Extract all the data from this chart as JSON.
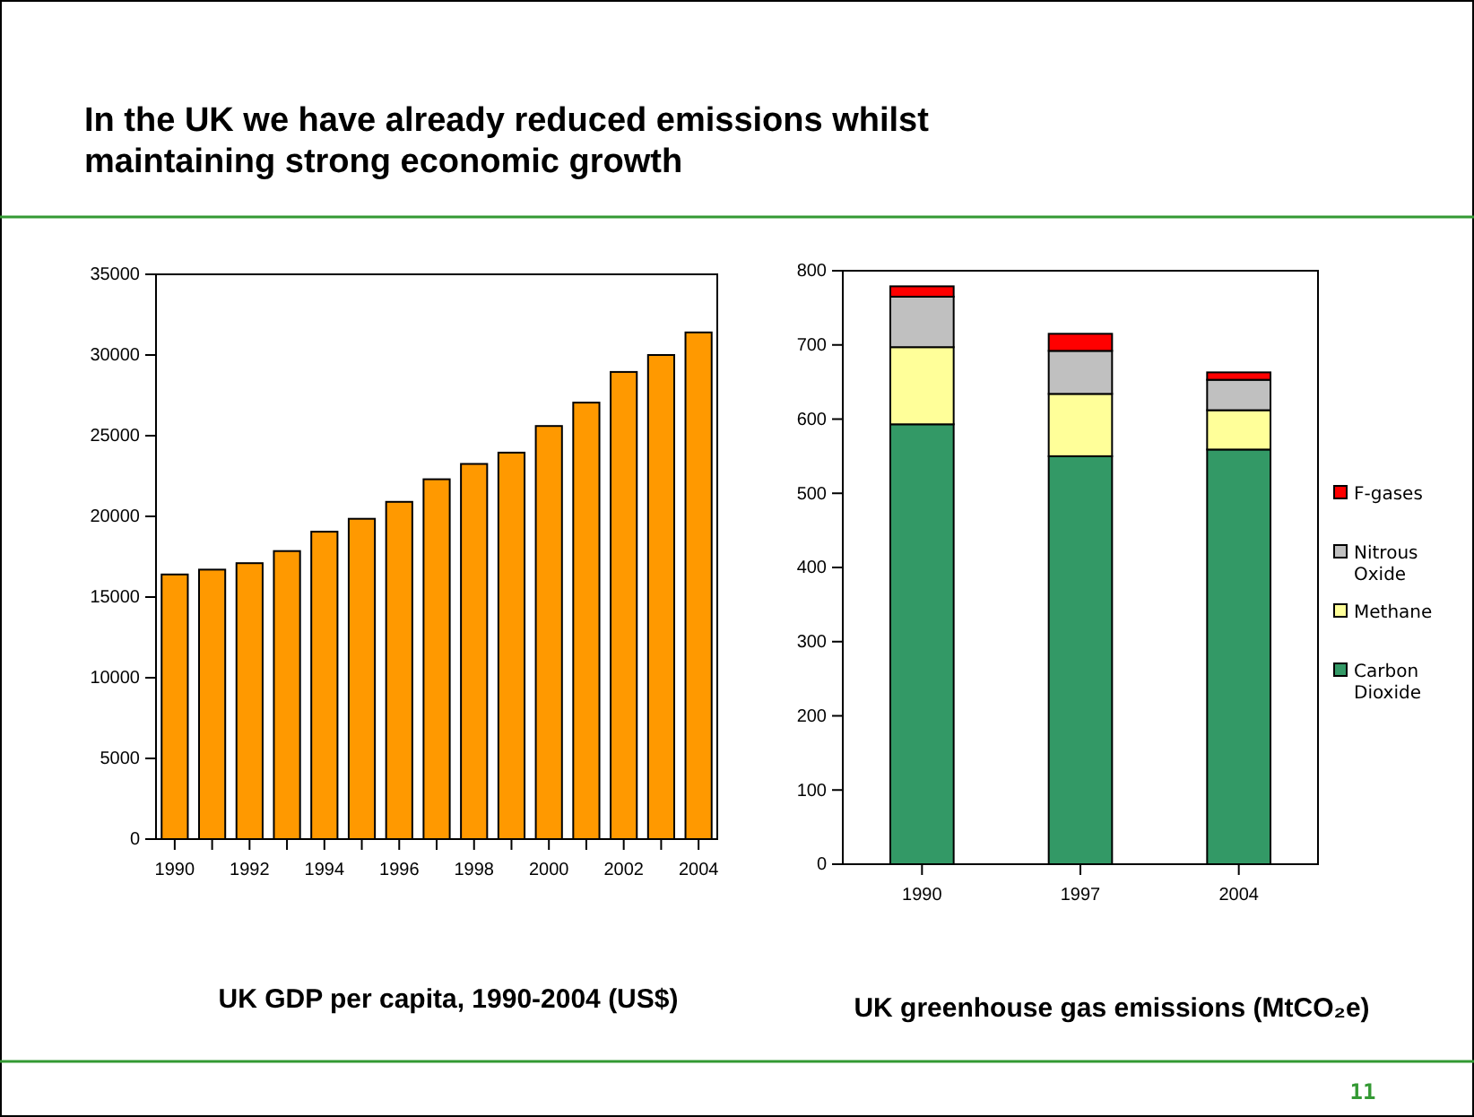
{
  "chart_data": [
    {
      "type": "bar",
      "title": "UK GDP per capita, 1990-2004 (US$)",
      "annotations": [
        "In the UK we have already reduced emissions whilst maintaining strong economic growth"
      ],
      "categories": [
        "1990",
        null,
        "1992",
        null,
        "1994",
        null,
        "1996",
        null,
        "1998",
        null,
        "2000",
        null,
        "2002",
        null,
        "2004"
      ],
      "values": [
        16400,
        16700,
        17100,
        17850,
        19050,
        19850,
        20900,
        22300,
        23250,
        23950,
        25600,
        27050,
        28950,
        30000,
        31400
      ],
      "color": "#ff9900",
      "ylim": [
        0,
        35000
      ],
      "yticks": [
        0,
        5000,
        10000,
        15000,
        20000,
        25000,
        30000,
        35000
      ],
      "grid": false,
      "legend": false
    },
    {
      "type": "bar",
      "title": "UK greenhouse gas emissions (MtCO₂e)",
      "annotations": [
        "11"
      ],
      "stacked": true,
      "categories": [
        "1990",
        "1997",
        "2004"
      ],
      "series": [
        {
          "name": "Carbon Dioxide",
          "color": "#339966",
          "values": [
            593,
            550,
            559
          ]
        },
        {
          "name": "Methane",
          "color": "#ffff99",
          "values": [
            104,
            84,
            53
          ]
        },
        {
          "name": "Nitrous Oxide",
          "color": "#c0c0c0",
          "values": [
            68,
            58,
            41
          ]
        },
        {
          "name": "F-gases",
          "color": "#ff0000",
          "values": [
            14,
            23,
            10
          ]
        }
      ],
      "ylim": [
        0,
        800
      ],
      "yticks": [
        0,
        100,
        200,
        300,
        400,
        500,
        600,
        700,
        800
      ],
      "grid": false,
      "legend": "right"
    }
  ]
}
